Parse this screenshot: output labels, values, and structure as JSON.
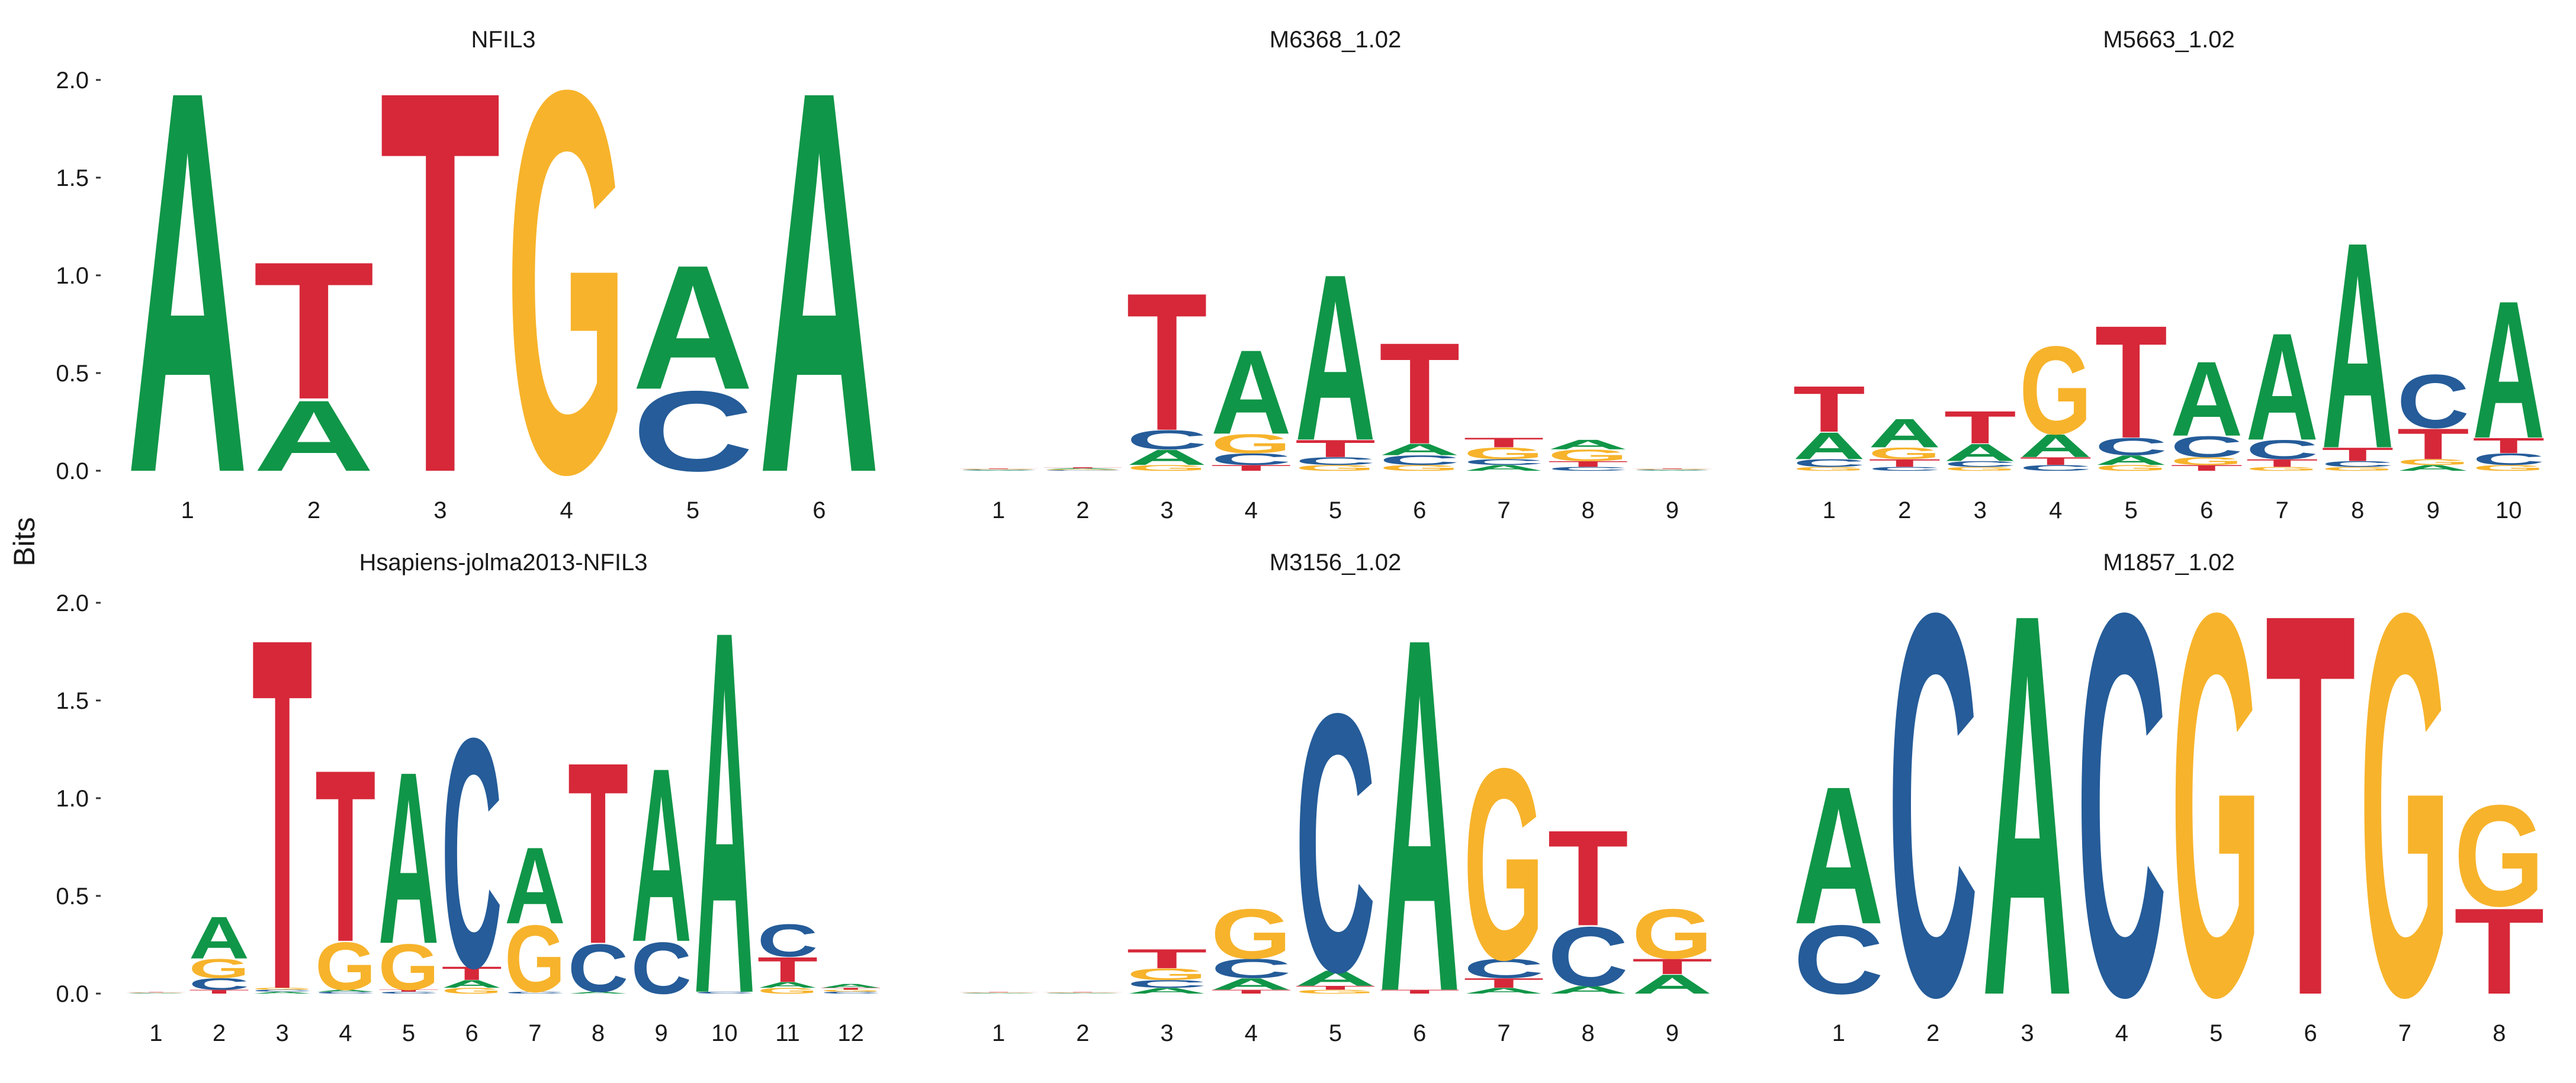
{
  "colors": {
    "A": "#109648",
    "C": "#255C99",
    "G": "#F7B32B",
    "T": "#D62839"
  },
  "ylabel": "Bits",
  "chart_data": [
    {
      "type": "sequence-logo",
      "title": "NFIL3",
      "ylabel": "Bits",
      "ylim": [
        0,
        2
      ],
      "yticks": [
        "0.0",
        "0.5",
        "1.0",
        "1.5",
        "2.0"
      ],
      "positions": [
        "1",
        "2",
        "3",
        "4",
        "5",
        "6"
      ],
      "columns": [
        [
          {
            "base": "A",
            "bits": 2.0
          }
        ],
        [
          {
            "base": "A",
            "bits": 0.37
          },
          {
            "base": "T",
            "bits": 0.72
          }
        ],
        [
          {
            "base": "T",
            "bits": 2.0
          }
        ],
        [
          {
            "base": "G",
            "bits": 2.0
          }
        ],
        [
          {
            "base": "C",
            "bits": 0.42
          },
          {
            "base": "A",
            "bits": 0.65
          }
        ],
        [
          {
            "base": "A",
            "bits": 2.0
          }
        ]
      ]
    },
    {
      "type": "sequence-logo",
      "title": "M6368_1.02",
      "ylim": [
        0,
        2
      ],
      "positions": [
        "1",
        "2",
        "3",
        "4",
        "5",
        "6",
        "7",
        "8",
        "9"
      ],
      "columns": [
        [
          {
            "base": "A",
            "bits": 0.003
          },
          {
            "base": "C",
            "bits": 0.003
          },
          {
            "base": "G",
            "bits": 0.003
          },
          {
            "base": "T",
            "bits": 0.003
          }
        ],
        [
          {
            "base": "C",
            "bits": 0.004
          },
          {
            "base": "G",
            "bits": 0.004
          },
          {
            "base": "A",
            "bits": 0.005
          },
          {
            "base": "T",
            "bits": 0.005
          }
        ],
        [
          {
            "base": "G",
            "bits": 0.03
          },
          {
            "base": "A",
            "bits": 0.08
          },
          {
            "base": "C",
            "bits": 0.1
          },
          {
            "base": "T",
            "bits": 0.72
          }
        ],
        [
          {
            "base": "T",
            "bits": 0.03
          },
          {
            "base": "C",
            "bits": 0.06
          },
          {
            "base": "G",
            "bits": 0.1
          },
          {
            "base": "A",
            "bits": 0.44
          }
        ],
        [
          {
            "base": "G",
            "bits": 0.03
          },
          {
            "base": "C",
            "bits": 0.04
          },
          {
            "base": "T",
            "bits": 0.09
          },
          {
            "base": "A",
            "bits": 0.87
          }
        ],
        [
          {
            "base": "G",
            "bits": 0.03
          },
          {
            "base": "C",
            "bits": 0.05
          },
          {
            "base": "A",
            "bits": 0.06
          },
          {
            "base": "T",
            "bits": 0.53
          }
        ],
        [
          {
            "base": "A",
            "bits": 0.03
          },
          {
            "base": "C",
            "bits": 0.03
          },
          {
            "base": "G",
            "bits": 0.06
          },
          {
            "base": "T",
            "bits": 0.05
          }
        ],
        [
          {
            "base": "C",
            "bits": 0.02
          },
          {
            "base": "T",
            "bits": 0.03
          },
          {
            "base": "G",
            "bits": 0.06
          },
          {
            "base": "A",
            "bits": 0.05
          }
        ],
        [
          {
            "base": "A",
            "bits": 0.003
          },
          {
            "base": "C",
            "bits": 0.003
          },
          {
            "base": "G",
            "bits": 0.003
          },
          {
            "base": "T",
            "bits": 0.003
          }
        ]
      ]
    },
    {
      "type": "sequence-logo",
      "title": "M5663_1.02",
      "ylim": [
        0,
        2
      ],
      "positions": [
        "1",
        "2",
        "3",
        "4",
        "5",
        "6",
        "7",
        "8",
        "9",
        "10"
      ],
      "columns": [
        [
          {
            "base": "G",
            "bits": 0.02
          },
          {
            "base": "C",
            "bits": 0.04
          },
          {
            "base": "A",
            "bits": 0.14
          },
          {
            "base": "T",
            "bits": 0.24
          }
        ],
        [
          {
            "base": "C",
            "bits": 0.02
          },
          {
            "base": "T",
            "bits": 0.04
          },
          {
            "base": "G",
            "bits": 0.06
          },
          {
            "base": "A",
            "bits": 0.15
          }
        ],
        [
          {
            "base": "G",
            "bits": 0.02
          },
          {
            "base": "C",
            "bits": 0.03
          },
          {
            "base": "A",
            "bits": 0.09
          },
          {
            "base": "T",
            "bits": 0.17
          }
        ],
        [
          {
            "base": "C",
            "bits": 0.03
          },
          {
            "base": "T",
            "bits": 0.04
          },
          {
            "base": "A",
            "bits": 0.12
          },
          {
            "base": "G",
            "bits": 0.46
          }
        ],
        [
          {
            "base": "G",
            "bits": 0.03
          },
          {
            "base": "A",
            "bits": 0.05
          },
          {
            "base": "C",
            "bits": 0.09
          },
          {
            "base": "T",
            "bits": 0.59
          }
        ],
        [
          {
            "base": "T",
            "bits": 0.03
          },
          {
            "base": "G",
            "bits": 0.04
          },
          {
            "base": "C",
            "bits": 0.11
          },
          {
            "base": "A",
            "bits": 0.39
          }
        ],
        [
          {
            "base": "G",
            "bits": 0.02
          },
          {
            "base": "T",
            "bits": 0.04
          },
          {
            "base": "C",
            "bits": 0.1
          },
          {
            "base": "A",
            "bits": 0.56
          }
        ],
        [
          {
            "base": "G",
            "bits": 0.02
          },
          {
            "base": "C",
            "bits": 0.03
          },
          {
            "base": "T",
            "bits": 0.07
          },
          {
            "base": "A",
            "bits": 1.08
          }
        ],
        [
          {
            "base": "A",
            "bits": 0.03
          },
          {
            "base": "G",
            "bits": 0.03
          },
          {
            "base": "T",
            "bits": 0.16
          },
          {
            "base": "C",
            "bits": 0.28
          }
        ],
        [
          {
            "base": "G",
            "bits": 0.03
          },
          {
            "base": "C",
            "bits": 0.06
          },
          {
            "base": "T",
            "bits": 0.08
          },
          {
            "base": "A",
            "bits": 0.72
          }
        ]
      ]
    },
    {
      "type": "sequence-logo",
      "title": "Hsapiens-jolma2013-NFIL3",
      "ylim": [
        0,
        2
      ],
      "positions": [
        "1",
        "2",
        "3",
        "4",
        "5",
        "6",
        "7",
        "8",
        "9",
        "10",
        "11",
        "12"
      ],
      "columns": [
        [
          {
            "base": "A",
            "bits": 0.002
          },
          {
            "base": "C",
            "bits": 0.002
          },
          {
            "base": "G",
            "bits": 0.002
          },
          {
            "base": "T",
            "bits": 0.002
          }
        ],
        [
          {
            "base": "T",
            "bits": 0.02
          },
          {
            "base": "C",
            "bits": 0.06
          },
          {
            "base": "G",
            "bits": 0.1
          },
          {
            "base": "A",
            "bits": 0.22
          }
        ],
        [
          {
            "base": "A",
            "bits": 0.01
          },
          {
            "base": "C",
            "bits": 0.01
          },
          {
            "base": "G",
            "bits": 0.01
          },
          {
            "base": "T",
            "bits": 1.84
          }
        ],
        [
          {
            "base": "C",
            "bits": 0.01
          },
          {
            "base": "A",
            "bits": 0.01
          },
          {
            "base": "G",
            "bits": 0.25
          },
          {
            "base": "T",
            "bits": 0.9
          }
        ],
        [
          {
            "base": "C",
            "bits": 0.01
          },
          {
            "base": "T",
            "bits": 0.01
          },
          {
            "base": "G",
            "bits": 0.24
          },
          {
            "base": "A",
            "bits": 0.9
          }
        ],
        [
          {
            "base": "G",
            "bits": 0.03
          },
          {
            "base": "A",
            "bits": 0.04
          },
          {
            "base": "T",
            "bits": 0.07
          },
          {
            "base": "C",
            "bits": 1.2
          }
        ],
        [
          {
            "base": "C",
            "bits": 0.01
          },
          {
            "base": "G",
            "bits": 0.35
          },
          {
            "base": "A",
            "bits": 0.4
          }
        ],
        [
          {
            "base": "A",
            "bits": 0.01
          },
          {
            "base": "C",
            "bits": 0.25
          },
          {
            "base": "T",
            "bits": 0.95
          }
        ],
        [
          {
            "base": "C",
            "bits": 0.27
          },
          {
            "base": "A",
            "bits": 0.91
          }
        ],
        [
          {
            "base": "C",
            "bits": 0.01
          },
          {
            "base": "A",
            "bits": 1.9
          }
        ],
        [
          {
            "base": "G",
            "bits": 0.03
          },
          {
            "base": "A",
            "bits": 0.03
          },
          {
            "base": "T",
            "bits": 0.13
          },
          {
            "base": "C",
            "bits": 0.17
          }
        ],
        [
          {
            "base": "C",
            "bits": 0.01
          },
          {
            "base": "G",
            "bits": 0.01
          },
          {
            "base": "T",
            "bits": 0.01
          },
          {
            "base": "A",
            "bits": 0.02
          }
        ]
      ]
    },
    {
      "type": "sequence-logo",
      "title": "M3156_1.02",
      "ylim": [
        0,
        2
      ],
      "positions": [
        "1",
        "2",
        "3",
        "4",
        "5",
        "6",
        "7",
        "8",
        "9"
      ],
      "columns": [
        [
          {
            "base": "A",
            "bits": 0.002
          },
          {
            "base": "C",
            "bits": 0.002
          },
          {
            "base": "G",
            "bits": 0.002
          },
          {
            "base": "T",
            "bits": 0.002
          }
        ],
        [
          {
            "base": "A",
            "bits": 0.002
          },
          {
            "base": "C",
            "bits": 0.002
          },
          {
            "base": "G",
            "bits": 0.002
          },
          {
            "base": "T",
            "bits": 0.002
          }
        ],
        [
          {
            "base": "A",
            "bits": 0.03
          },
          {
            "base": "C",
            "bits": 0.04
          },
          {
            "base": "G",
            "bits": 0.06
          },
          {
            "base": "T",
            "bits": 0.1
          }
        ],
        [
          {
            "base": "T",
            "bits": 0.02
          },
          {
            "base": "A",
            "bits": 0.06
          },
          {
            "base": "C",
            "bits": 0.1
          },
          {
            "base": "G",
            "bits": 0.26
          }
        ],
        [
          {
            "base": "G",
            "bits": 0.02
          },
          {
            "base": "T",
            "bits": 0.02
          },
          {
            "base": "A",
            "bits": 0.08
          },
          {
            "base": "C",
            "bits": 1.35
          }
        ],
        [
          {
            "base": "T",
            "bits": 0.02
          },
          {
            "base": "A",
            "bits": 1.85
          }
        ],
        [
          {
            "base": "A",
            "bits": 0.03
          },
          {
            "base": "T",
            "bits": 0.05
          },
          {
            "base": "C",
            "bits": 0.1
          },
          {
            "base": "G",
            "bits": 1.0
          }
        ],
        [
          {
            "base": "A",
            "bits": 0.04
          },
          {
            "base": "C",
            "bits": 0.31
          },
          {
            "base": "T",
            "bits": 0.5
          }
        ],
        [
          {
            "base": "A",
            "bits": 0.1
          },
          {
            "base": "T",
            "bits": 0.08
          },
          {
            "base": "G",
            "bits": 0.26
          }
        ]
      ]
    },
    {
      "type": "sequence-logo",
      "title": "M1857_1.02",
      "ylim": [
        0,
        2
      ],
      "positions": [
        "1",
        "2",
        "3",
        "4",
        "5",
        "6",
        "7",
        "8"
      ],
      "columns": [
        [
          {
            "base": "C",
            "bits": 0.36
          },
          {
            "base": "A",
            "bits": 0.72
          }
        ],
        [
          {
            "base": "C",
            "bits": 2.0
          }
        ],
        [
          {
            "base": "A",
            "bits": 2.0
          }
        ],
        [
          {
            "base": "C",
            "bits": 2.0
          }
        ],
        [
          {
            "base": "G",
            "bits": 2.0
          }
        ],
        [
          {
            "base": "T",
            "bits": 2.0
          }
        ],
        [
          {
            "base": "G",
            "bits": 2.0
          }
        ],
        [
          {
            "base": "T",
            "bits": 0.45
          },
          {
            "base": "G",
            "bits": 0.53
          }
        ]
      ]
    }
  ]
}
